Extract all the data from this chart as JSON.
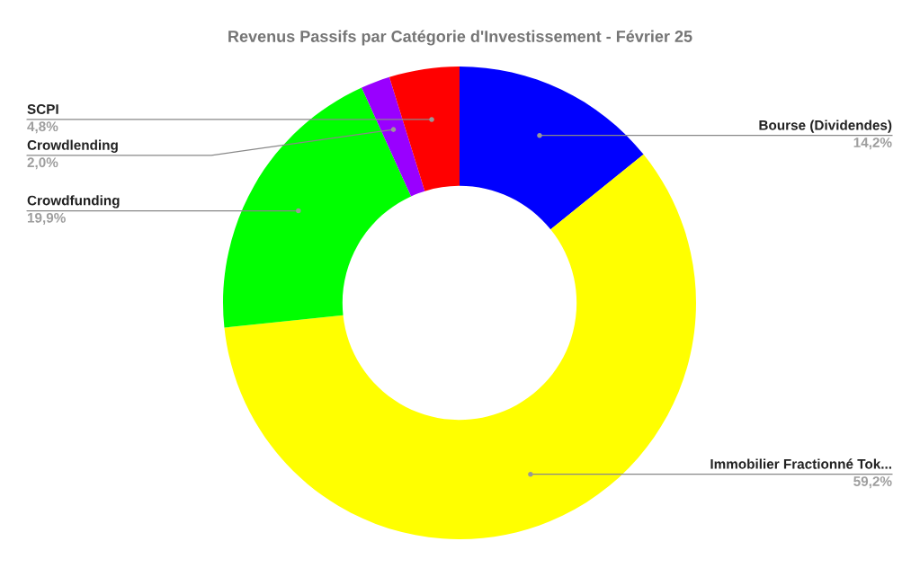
{
  "chart_data": {
    "type": "donut",
    "title": "Revenus Passifs par Catégorie d'Investissement - Février 25",
    "categories": [
      "Bourse (Dividendes)",
      "Immobilier Fractionné Tok...",
      "Crowdfunding",
      "Crowdlending",
      "SCPI"
    ],
    "values": [
      14.2,
      59.2,
      19.9,
      2.0,
      4.8
    ],
    "value_labels": [
      "14,2%",
      "59,2%",
      "19,9%",
      "2,0%",
      "4,8%"
    ],
    "colors": [
      "#0000ff",
      "#ffff00",
      "#00ff00",
      "#9900ff",
      "#ff0000"
    ]
  }
}
